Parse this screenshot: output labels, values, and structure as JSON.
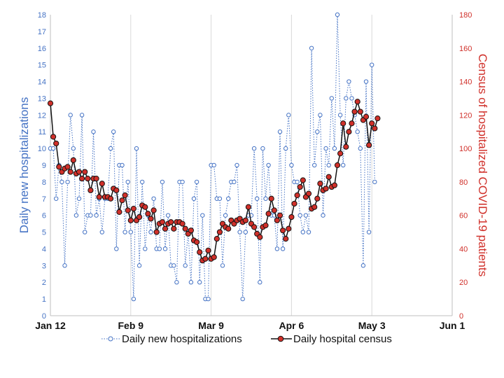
{
  "chart_data": {
    "type": "line",
    "title": "",
    "xlabel": "",
    "ylabel_left": "Daily new hospitalizations",
    "ylabel_right": "Census of hospitalized COVID-19  patients",
    "x_ticks": [
      "Jan 12",
      "Feb 9",
      "Mar 9",
      "Apr 6",
      "May 3",
      "Jun 1"
    ],
    "x_tick_days": [
      0,
      28,
      56,
      84,
      112,
      140
    ],
    "xlim_days": [
      0,
      140
    ],
    "start_date": "Jan 12",
    "ylim_left": [
      0,
      18
    ],
    "yticks_left": [
      0,
      1,
      2,
      3,
      4,
      5,
      6,
      7,
      8,
      9,
      10,
      11,
      12,
      13,
      14,
      15,
      16,
      17,
      18
    ],
    "ylim_right": [
      0,
      180
    ],
    "yticks_right": [
      0,
      20,
      40,
      60,
      80,
      100,
      120,
      140,
      160,
      180
    ],
    "grid": "vertical",
    "legend_position": "bottom",
    "series": [
      {
        "name": "Daily new hospitalizations",
        "axis": "left",
        "color": "#4472c4",
        "style": "dotted line with open circle markers",
        "values": [
          10,
          10,
          7,
          9,
          8,
          3,
          8,
          12,
          10,
          6,
          7,
          12,
          5,
          6,
          6,
          11,
          6,
          7,
          5,
          7,
          7,
          10,
          11,
          4,
          9,
          9,
          5,
          8,
          5,
          1,
          10,
          3,
          8,
          4,
          6,
          5,
          7,
          4,
          4,
          8,
          4,
          6,
          3,
          3,
          2,
          8,
          8,
          3,
          5,
          2,
          7,
          8,
          2,
          6,
          1,
          1,
          9,
          9,
          7,
          7,
          3,
          6,
          7,
          8,
          8,
          9,
          5,
          1,
          5,
          6,
          6,
          10,
          7,
          2,
          10,
          7,
          9,
          6,
          6,
          4,
          11,
          4,
          10,
          12,
          9,
          8,
          8,
          6,
          5,
          6,
          5,
          16,
          9,
          11,
          12,
          6,
          10,
          9,
          13,
          10,
          18,
          12,
          9,
          13,
          14,
          13,
          12,
          11,
          10,
          3,
          14,
          5,
          15,
          8
        ]
      },
      {
        "name": "Daily hospital census",
        "axis": "right",
        "color": "#d0302a",
        "style": "solid black line with red filled circle markers",
        "values": [
          127,
          107,
          103,
          89,
          86,
          88,
          89,
          86,
          93,
          85,
          86,
          82,
          86,
          82,
          75,
          82,
          82,
          71,
          79,
          71,
          71,
          70,
          76,
          75,
          62,
          69,
          72,
          63,
          57,
          64,
          57,
          59,
          66,
          65,
          61,
          58,
          63,
          50,
          55,
          56,
          52,
          55,
          56,
          52,
          56,
          56,
          55,
          52,
          49,
          51,
          45,
          44,
          38,
          33,
          34,
          39,
          34,
          35,
          46,
          50,
          55,
          53,
          52,
          57,
          55,
          57,
          58,
          56,
          57,
          65,
          55,
          53,
          49,
          47,
          53,
          54,
          61,
          70,
          63,
          57,
          60,
          51,
          46,
          52,
          59,
          67,
          72,
          77,
          81,
          71,
          73,
          64,
          65,
          70,
          79,
          75,
          76,
          83,
          77,
          78,
          90,
          97,
          115,
          101,
          110,
          115,
          122,
          128,
          122,
          117,
          119,
          102,
          115,
          112,
          118
        ]
      }
    ]
  }
}
